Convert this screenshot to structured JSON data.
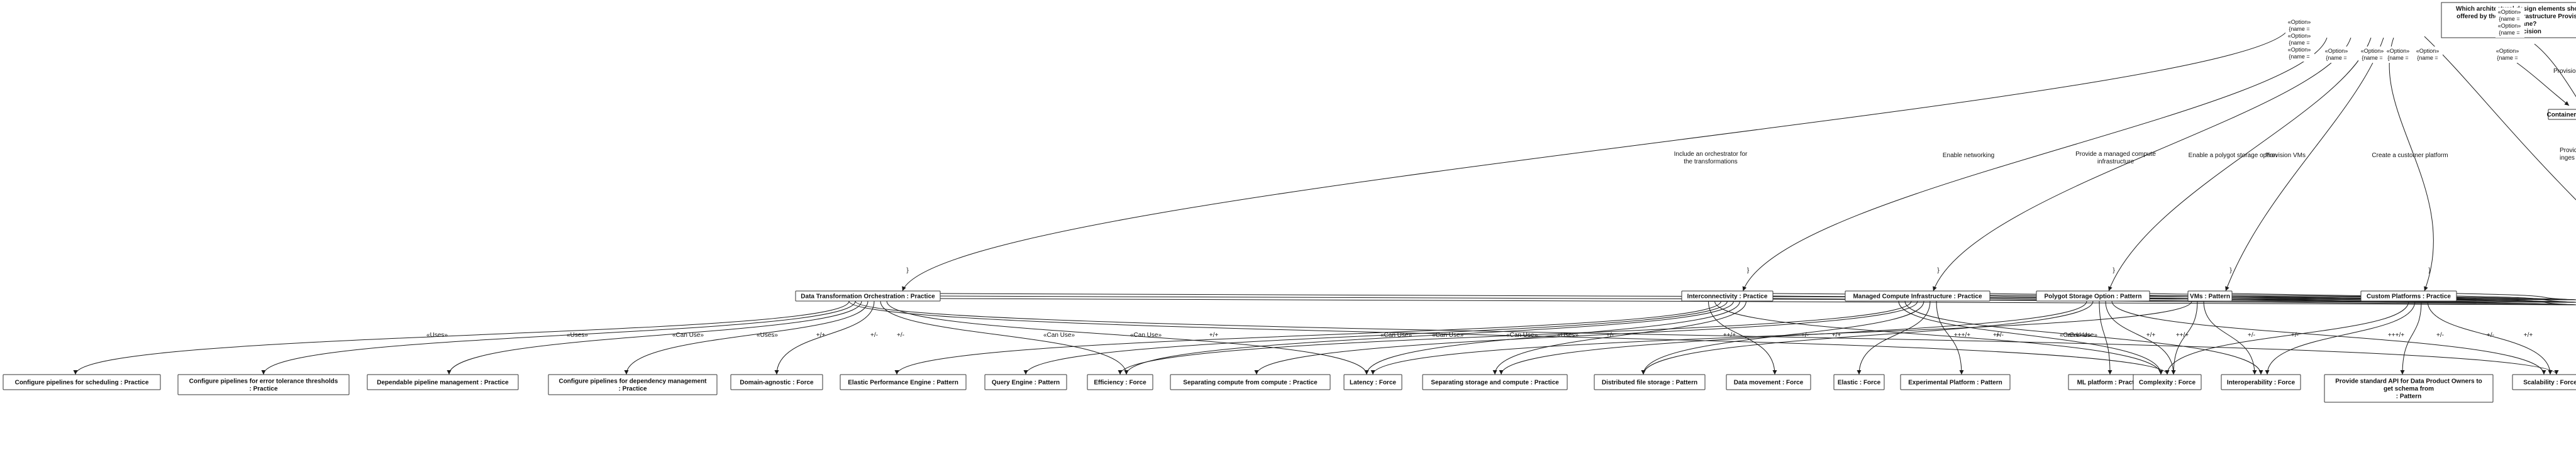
{
  "decision": {
    "title_lines": [
      "Which architectural design elements should be",
      "offered by the Data Infrastructure Provisioning",
      "Plane?",
      ": Decision"
    ]
  },
  "option_tags": [
    {
      "lines": [
        "«Option»",
        "{name =",
        "«Option»",
        "{name =",
        "«Option»",
        "{name ="
      ]
    },
    {
      "lines": [
        "«Option»",
        "{name ="
      ]
    },
    {
      "lines": [
        "«Option»",
        "{name ="
      ]
    },
    {
      "lines": [
        "«Option»",
        "{name ="
      ]
    },
    {
      "lines": [
        "«Option»",
        "{name ="
      ]
    },
    {
      "lines": [
        "«Option»",
        "{name =",
        "«Option»",
        "{name ="
      ]
    },
    {
      "lines": [
        "«Option»",
        "{name ="
      ]
    }
  ],
  "option_edge_labels": [
    [
      "Include an orchestrator for",
      "the transformations"
    ],
    [
      "Enable networking"
    ],
    [
      "Provide a managed compute",
      "infrastructure"
    ],
    [
      "Enable a polygot storage option"
    ],
    [
      "Provision VMs"
    ],
    [
      "Create a customer platform"
    ],
    [
      "Provision a container"
    ],
    [
      "Provid",
      "inges"
    ]
  ],
  "brace": "}",
  "container_registry": "Container Registry : P",
  "mid_nodes": [
    "Data Transformation Orchestration : Practice",
    "Interconnectivity : Practice",
    "Managed Compute Infrastructure : Practice",
    "Polygot Storage Option : Pattern",
    "VMs : Pattern",
    "Custom Platforms : Practice"
  ],
  "bottom_nodes": [
    [
      "Configure pipelines for scheduling : Practice"
    ],
    [
      "Configure pipelines for error tolerance thresholds",
      ": Practice"
    ],
    [
      "Dependable pipeline management : Practice"
    ],
    [
      "Configure pipelines for dependency management",
      ": Practice"
    ],
    [
      "Domain-agnostic : Force"
    ],
    [
      "Elastic Performance Engine : Pattern"
    ],
    [
      "Query Engine : Pattern"
    ],
    [
      "Efficiency : Force"
    ],
    [
      "Separating compute from compute : Practice"
    ],
    [
      "Latency : Force"
    ],
    [
      "Separating storage and compute : Practice"
    ],
    [
      "Distributed file storage : Pattern"
    ],
    [
      "Data movement : Force"
    ],
    [
      "Elastic : Force"
    ],
    [
      "Experimental Platform : Pattern"
    ],
    [
      "ML platform : Practice"
    ],
    [
      "Complexity : Force"
    ],
    [
      "Interoperability : Force"
    ],
    [
      "Provide standard API for Data Product Owners to",
      "get schema from",
      ": Pattern"
    ],
    [
      "Scalability : Force"
    ]
  ],
  "relation_labels": {
    "uses": "«Uses»",
    "can_use": "«Can Use»",
    "plus": "+/+",
    "minus": "+/-",
    "plusplus": "++/+",
    "plusplusplus": "+++/+"
  }
}
